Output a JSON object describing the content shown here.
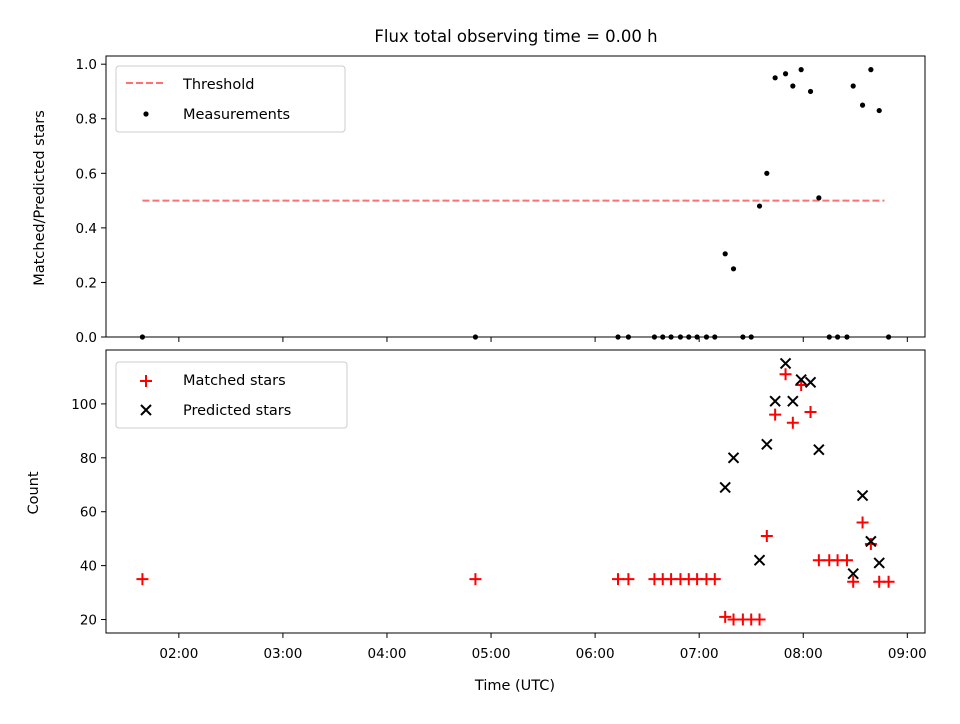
{
  "chart_data": [
    {
      "type": "scatter",
      "title": "Flux total observing time = 0.00 h",
      "xlabel": "",
      "ylabel": "Matched/Predicted stars",
      "xlim": [
        1.3,
        9.17
      ],
      "ylim": [
        0,
        1.03
      ],
      "yticks": [
        "0.0",
        "0.2",
        "0.4",
        "0.6",
        "0.8",
        "1.0"
      ],
      "ytick_values": [
        0,
        0.2,
        0.4,
        0.6,
        0.8,
        1.0
      ],
      "grid": false,
      "legend_position": "upper left",
      "threshold": {
        "name": "Threshold",
        "value": 0.5,
        "x_start": 1.65,
        "x_end": 8.78,
        "color": "#ff7070",
        "style": "dashed"
      },
      "series": [
        {
          "name": "Measurements",
          "marker": "dot",
          "color": "#000000",
          "x": [
            1.65,
            4.85,
            6.22,
            6.32,
            6.57,
            6.65,
            6.73,
            6.82,
            6.9,
            6.98,
            7.07,
            7.15,
            7.25,
            7.33,
            7.42,
            7.5,
            7.58,
            7.65,
            7.73,
            7.83,
            7.9,
            7.98,
            8.07,
            8.15,
            8.25,
            8.33,
            8.42,
            8.48,
            8.57,
            8.65,
            8.73,
            8.82
          ],
          "y": [
            0,
            0,
            0,
            0,
            0,
            0,
            0,
            0,
            0,
            0,
            0,
            0,
            0.305,
            0.25,
            0,
            0,
            0.48,
            0.6,
            0.95,
            0.965,
            0.92,
            0.98,
            0.9,
            0.51,
            0,
            0,
            0,
            0.92,
            0.85,
            0.98,
            0.83,
            0
          ]
        }
      ]
    },
    {
      "type": "scatter",
      "title": "",
      "xlabel": "Time (UTC)",
      "ylabel": "Count",
      "xlim": [
        1.3,
        9.17
      ],
      "ylim": [
        15,
        120
      ],
      "xticks": [
        "02:00",
        "03:00",
        "04:00",
        "05:00",
        "06:00",
        "07:00",
        "08:00",
        "09:00"
      ],
      "xtick_values": [
        2,
        3,
        4,
        5,
        6,
        7,
        8,
        9
      ],
      "yticks": [
        "20",
        "40",
        "60",
        "80",
        "100"
      ],
      "ytick_values": [
        20,
        40,
        60,
        80,
        100
      ],
      "grid": false,
      "legend_position": "upper left",
      "series": [
        {
          "name": "Matched stars",
          "marker": "plus",
          "color": "#ff0000",
          "x": [
            1.65,
            4.85,
            6.22,
            6.32,
            6.57,
            6.65,
            6.73,
            6.82,
            6.9,
            6.98,
            7.07,
            7.15,
            7.25,
            7.33,
            7.42,
            7.5,
            7.58,
            7.65,
            7.73,
            7.83,
            7.9,
            7.98,
            8.07,
            8.15,
            8.25,
            8.33,
            8.42,
            8.48,
            8.57,
            8.65,
            8.73,
            8.82
          ],
          "y": [
            35,
            35,
            35,
            35,
            35,
            35,
            35,
            35,
            35,
            35,
            35,
            35,
            21,
            20,
            20,
            20,
            20,
            51,
            96,
            111,
            93,
            107,
            97,
            42,
            42,
            42,
            42,
            34,
            56,
            48,
            34,
            34
          ]
        },
        {
          "name": "Predicted stars",
          "marker": "x",
          "color": "#000000",
          "x": [
            7.25,
            7.33,
            7.58,
            7.65,
            7.73,
            7.83,
            7.9,
            7.98,
            8.07,
            8.15,
            8.48,
            8.57,
            8.65,
            8.73
          ],
          "y": [
            69,
            80,
            42,
            85,
            101,
            115,
            101,
            109,
            108,
            83,
            37,
            66,
            49,
            41
          ]
        }
      ]
    }
  ]
}
